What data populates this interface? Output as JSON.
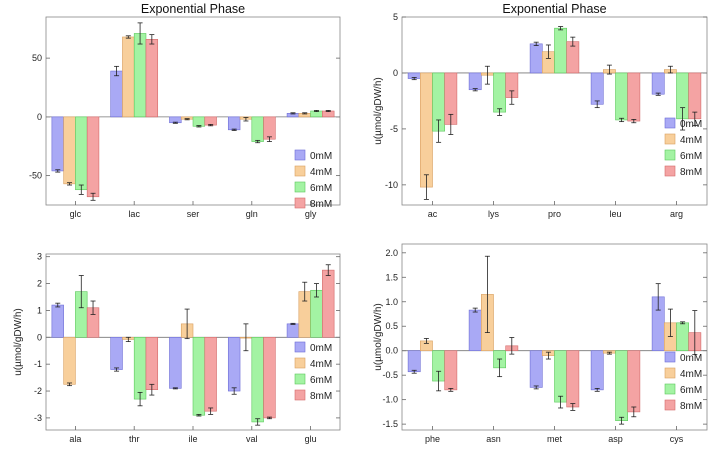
{
  "legend": [
    "0mM",
    "4mM",
    "6mM",
    "8mM"
  ],
  "colors": [
    "#a9a9f5",
    "#f8cf9b",
    "#a3f3a3",
    "#f4a3a3"
  ],
  "edges": [
    "#6d6dd6",
    "#d9a060",
    "#5cc85c",
    "#d46a6a"
  ],
  "chart_data": [
    {
      "type": "bar",
      "title": "Exponential Phase",
      "ylabel": "",
      "categories": [
        "glc",
        "lac",
        "ser",
        "gln",
        "gly"
      ],
      "ylim": [
        -75,
        85
      ],
      "yticks": [
        -50,
        0,
        50
      ],
      "ytick_labels": [
        "-50",
        "0",
        "50"
      ],
      "series": [
        {
          "name": "0mM",
          "values": [
            -46,
            39,
            -5,
            -11,
            3
          ],
          "err": [
            1,
            4,
            0.5,
            0.6,
            0.5
          ]
        },
        {
          "name": "4mM",
          "values": [
            -57,
            68,
            -2,
            -2,
            3
          ],
          "err": [
            1,
            1,
            0.5,
            1.5,
            0.5
          ]
        },
        {
          "name": "6mM",
          "values": [
            -62,
            71,
            -8,
            -21,
            5
          ],
          "err": [
            4,
            9,
            0.6,
            1,
            0.5
          ]
        },
        {
          "name": "8mM",
          "values": [
            -68,
            66,
            -7,
            -19,
            5
          ],
          "err": [
            3,
            4,
            0.6,
            2,
            0.5
          ]
        }
      ]
    },
    {
      "type": "bar",
      "title": "Exponential Phase",
      "ylabel": "u(µmol/gDW/h)",
      "categories": [
        "ac",
        "lys",
        "pro",
        "leu",
        "arg"
      ],
      "ylim": [
        -11.8,
        5
      ],
      "yticks": [
        -10,
        -5,
        0,
        5
      ],
      "ytick_labels": [
        "-10",
        "-5",
        "0",
        "5"
      ],
      "series": [
        {
          "name": "0mM",
          "values": [
            -0.5,
            -1.5,
            2.6,
            -2.8,
            -1.9
          ],
          "err": [
            0.1,
            0.1,
            0.15,
            0.3,
            0.1
          ]
        },
        {
          "name": "4mM",
          "values": [
            -10.2,
            -0.2,
            1.9,
            0.3,
            0.3
          ],
          "err": [
            1.1,
            0.8,
            0.6,
            0.4,
            0.3
          ]
        },
        {
          "name": "6mM",
          "values": [
            -5.2,
            -3.5,
            4.0,
            -4.2,
            -4.1
          ],
          "err": [
            1.0,
            0.3,
            0.15,
            0.15,
            1.0
          ]
        },
        {
          "name": "8mM",
          "values": [
            -4.6,
            -2.2,
            2.8,
            -4.3,
            -4.1
          ],
          "err": [
            0.9,
            0.6,
            0.4,
            0.15,
            0.6
          ]
        }
      ]
    },
    {
      "type": "bar",
      "title": "",
      "ylabel": "u(µmol/gDW/h)",
      "categories": [
        "ala",
        "thr",
        "ile",
        "val",
        "glu"
      ],
      "ylim": [
        -3.45,
        3.1
      ],
      "yticks": [
        -3,
        -2,
        -1,
        0,
        1,
        2,
        3
      ],
      "ytick_labels": [
        "-3",
        "-2",
        "-1",
        "0",
        "1",
        "2",
        "3"
      ],
      "series": [
        {
          "name": "0mM",
          "values": [
            1.2,
            -1.2,
            -1.9,
            -2.0,
            0.5
          ],
          "err": [
            0.07,
            0.06,
            0.02,
            0.12,
            0.02
          ]
        },
        {
          "name": "4mM",
          "values": [
            -1.75,
            -0.08,
            0.5,
            0.0,
            1.7
          ],
          "err": [
            0.05,
            0.08,
            0.55,
            0.5,
            0.35
          ]
        },
        {
          "name": "6mM",
          "values": [
            1.7,
            -2.3,
            -2.9,
            -3.15,
            1.75
          ],
          "err": [
            0.6,
            0.25,
            0.03,
            0.12,
            0.25
          ]
        },
        {
          "name": "8mM",
          "values": [
            1.1,
            -1.95,
            -2.75,
            -3.0,
            2.5
          ],
          "err": [
            0.25,
            0.2,
            0.12,
            0.03,
            0.2
          ]
        }
      ]
    },
    {
      "type": "bar",
      "title": "",
      "ylabel": "u(µmol/gDW/h)",
      "categories": [
        "phe",
        "asn",
        "met",
        "asp",
        "cys"
      ],
      "ylim": [
        -1.62,
        2.18
      ],
      "yticks": [
        -1.5,
        -1.0,
        -0.5,
        0.0,
        0.5,
        1.0,
        1.5,
        2.0
      ],
      "ytick_labels": [
        "-1.5",
        "-1.0",
        "-0.5",
        "0.0",
        "0.5",
        "1.0",
        "1.5",
        "2.0"
      ],
      "series": [
        {
          "name": "0mM",
          "values": [
            -0.43,
            0.83,
            -0.75,
            -0.8,
            1.1
          ],
          "err": [
            0.03,
            0.04,
            0.03,
            0.03,
            0.27
          ]
        },
        {
          "name": "4mM",
          "values": [
            0.2,
            1.15,
            -0.1,
            -0.05,
            0.57
          ],
          "err": [
            0.05,
            0.78,
            0.07,
            0.02,
            0.28
          ]
        },
        {
          "name": "6mM",
          "values": [
            -0.62,
            -0.35,
            -1.05,
            -1.43,
            0.57
          ],
          "err": [
            0.2,
            0.18,
            0.12,
            0.07,
            0.02
          ]
        },
        {
          "name": "8mM",
          "values": [
            -0.8,
            0.1,
            -1.15,
            -1.25,
            0.37
          ],
          "err": [
            0.03,
            0.17,
            0.07,
            0.1,
            0.45
          ]
        }
      ]
    }
  ]
}
